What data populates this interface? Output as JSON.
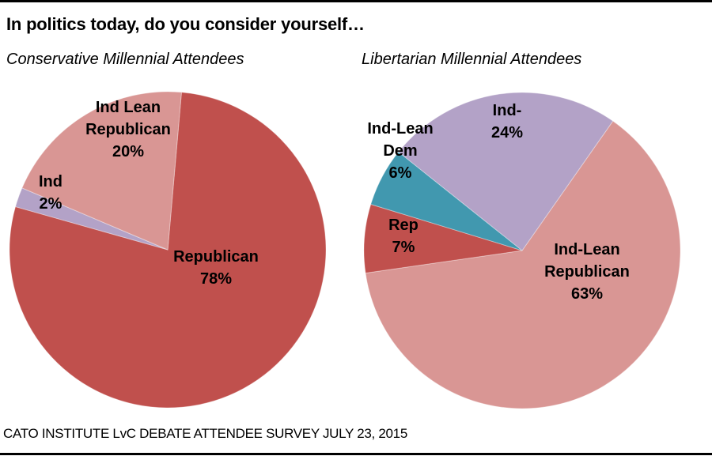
{
  "title": "In politics today, do you consider yourself…",
  "source": "CATO INSTITUTE LvC DEBATE ATTENDEE SURVEY JULY 23, 2015",
  "chart_data": [
    {
      "type": "pie",
      "title": "Conservative Millennial Attendees",
      "start_angle_deg": 5,
      "slices": [
        {
          "name": "Republican",
          "label_lines": [
            "Republican",
            "78%"
          ],
          "value": 78,
          "color": "#c0504d"
        },
        {
          "name": "Ind",
          "label_lines": [
            "Ind",
            "2%"
          ],
          "value": 2,
          "color": "#b3a2c7"
        },
        {
          "name": "Ind Lean Republican",
          "label_lines": [
            "Ind Lean",
            "Republican",
            "20%"
          ],
          "value": 20,
          "color": "#d99694"
        }
      ]
    },
    {
      "type": "pie",
      "title": "Libertarian Millennial Attendees",
      "start_angle_deg": 35,
      "slices": [
        {
          "name": "Ind-Lean Republican",
          "label_lines": [
            "Ind-Lean",
            "Republican",
            "63%"
          ],
          "value": 63,
          "color": "#d99694"
        },
        {
          "name": "Rep",
          "label_lines": [
            "Rep",
            "7%"
          ],
          "value": 7,
          "color": "#c0504d"
        },
        {
          "name": "Ind-Lean Dem",
          "label_lines": [
            "Ind-Lean",
            "Dem",
            "6%"
          ],
          "value": 6,
          "color": "#4198af"
        },
        {
          "name": "Ind-",
          "label_lines": [
            "Ind-",
            "24%"
          ],
          "value": 24,
          "color": "#b3a2c7"
        }
      ]
    }
  ]
}
